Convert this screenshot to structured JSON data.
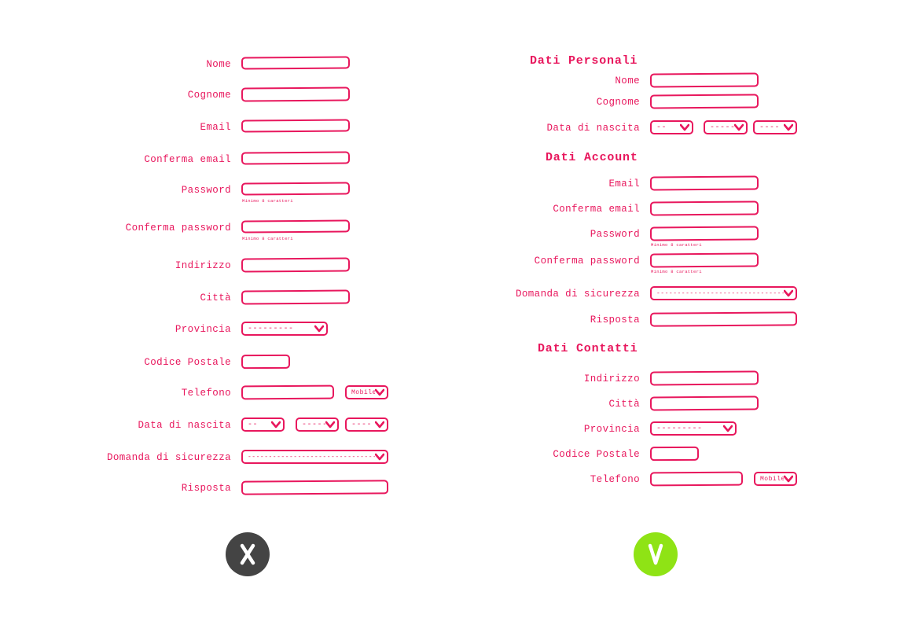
{
  "colors": {
    "accent": "#e8175d",
    "bad": "#444444",
    "good": "#8fe315"
  },
  "bad_form": {
    "labels": {
      "nome": "Nome",
      "cognome": "Cognome",
      "email": "Email",
      "conferma_email": "Conferma email",
      "password": "Password",
      "conferma_password": "Conferma password",
      "indirizzo": "Indirizzo",
      "citta": "Città",
      "provincia": "Provincia",
      "codice_postale": "Codice Postale",
      "telefono": "Telefono",
      "data_nascita": "Data di nascita",
      "domanda": "Domanda di sicurezza",
      "risposta": "Risposta"
    },
    "hints": {
      "password": "Minimo 8 caratteri",
      "conferma_password": "Minimo 8 caratteri"
    },
    "selects": {
      "provincia": "---------",
      "telefono_tipo": "Mobile",
      "giorno": "--",
      "mese": "-----",
      "anno": "----",
      "domanda": "-------------------------------"
    }
  },
  "good_form": {
    "sections": {
      "personali": "Dati Personali",
      "account": "Dati Account",
      "contatti": "Dati Contatti"
    },
    "labels": {
      "nome": "Nome",
      "cognome": "Cognome",
      "data_nascita": "Data di nascita",
      "email": "Email",
      "conferma_email": "Conferma email",
      "password": "Password",
      "conferma_password": "Conferma password",
      "domanda": "Domanda di sicurezza",
      "risposta": "Risposta",
      "indirizzo": "Indirizzo",
      "citta": "Città",
      "provincia": "Provincia",
      "codice_postale": "Codice Postale",
      "telefono": "Telefono"
    },
    "hints": {
      "password": "Minimo 8 caratteri",
      "conferma_password": "Minimo 8 caratteri"
    },
    "selects": {
      "giorno": "--",
      "mese": "-----",
      "anno": "----",
      "domanda": "-------------------------------",
      "provincia": "---------",
      "telefono_tipo": "Mobile"
    }
  },
  "badges": {
    "bad_icon": "cross-icon",
    "good_icon": "check-icon"
  }
}
